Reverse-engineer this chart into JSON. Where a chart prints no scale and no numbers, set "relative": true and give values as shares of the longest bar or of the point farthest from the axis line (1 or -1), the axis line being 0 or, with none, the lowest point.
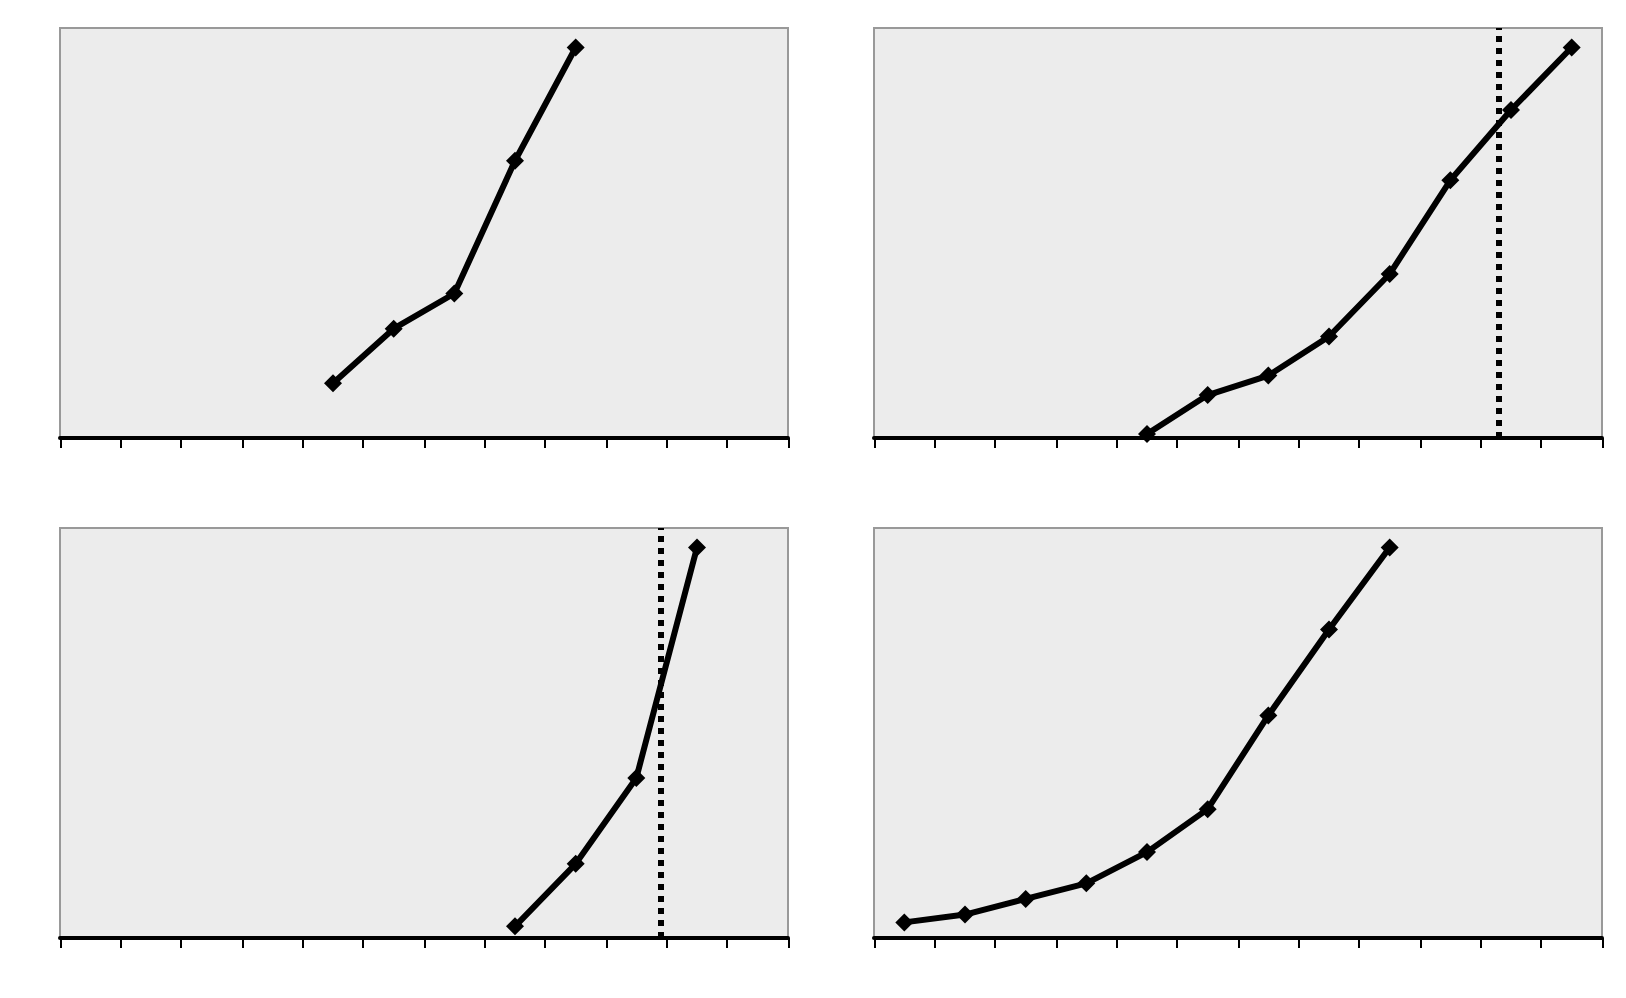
{
  "chart_data": [
    {
      "type": "line",
      "relative": true,
      "categories": [
        null,
        null,
        null,
        null,
        null,
        null,
        null,
        null,
        null,
        null,
        null,
        null
      ],
      "color": "#000000",
      "marker": "diamond",
      "values": [
        null,
        null,
        null,
        null,
        0.14,
        0.28,
        0.37,
        0.71,
        1,
        null,
        null,
        null
      ]
    },
    {
      "type": "line",
      "relative": true,
      "categories": [
        null,
        null,
        null,
        null,
        null,
        null,
        null,
        null,
        null,
        null,
        null,
        null
      ],
      "color": "#000000",
      "marker": "diamond",
      "values": [
        null,
        null,
        null,
        null,
        0.01,
        0.11,
        0.16,
        0.26,
        0.42,
        0.66,
        0.84,
        1
      ]
    },
    {
      "type": "line",
      "relative": true,
      "categories": [
        null,
        null,
        null,
        null,
        null,
        null,
        null,
        null,
        null,
        null,
        null,
        null
      ],
      "color": "#000000",
      "marker": "diamond",
      "values": [
        null,
        null,
        null,
        null,
        null,
        null,
        null,
        0.03,
        0.19,
        0.41,
        1,
        null
      ]
    },
    {
      "type": "line",
      "relative": true,
      "categories": [
        null,
        null,
        null,
        null,
        null,
        null,
        null,
        null,
        null,
        null,
        null,
        null
      ],
      "color": "#000000",
      "marker": "diamond",
      "values": [
        0.04,
        0.06,
        0.1,
        0.14,
        0.22,
        0.33,
        0.57,
        0.79,
        1,
        null,
        null,
        null
      ]
    }
  ]
}
